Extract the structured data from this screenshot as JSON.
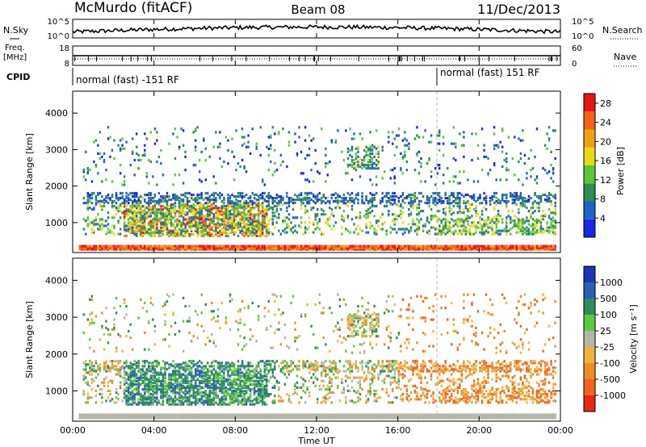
{
  "header": {
    "title": "McMurdo (fitACF)",
    "beam": "Beam 08",
    "date": "11/Dec/2013"
  },
  "strips": {
    "nsky_label": "N.Sky",
    "nsky_ticks": [
      "10^5",
      "10^0"
    ],
    "nsearch_label": "N.Search",
    "nsearch_ticks": [
      "10^5",
      "10^0"
    ],
    "freq_label_1": "Freq.",
    "freq_label_2": "[MHz]",
    "freq_ticks": [
      "18",
      "8"
    ],
    "nave_label": "Nave",
    "nave_ticks": [
      "60",
      "0"
    ],
    "cpid_label": "CPID",
    "cpid_segments": [
      "normal (fast) -151 RF",
      "normal (fast) 151 RF"
    ]
  },
  "chart_data": [
    {
      "type": "heatmap",
      "panel": "power",
      "ylabel": "Slant Range [km]",
      "yticks": [
        1000,
        2000,
        3000,
        4000
      ],
      "ylim": [
        180,
        4600
      ],
      "xlim": [
        0,
        24
      ],
      "colorbar_label": "Power [dB]",
      "colorbar_ticks": [
        4,
        8,
        12,
        16,
        20,
        24,
        28
      ],
      "colorbar_range": [
        0,
        30
      ],
      "colors": [
        "#1428e6",
        "#1e64c8",
        "#2e8c50",
        "#58c83a",
        "#e6dc14",
        "#f0a014",
        "#f06414",
        "#e61414"
      ]
    },
    {
      "type": "heatmap",
      "panel": "velocity",
      "ylabel": "Slant Range [km]",
      "yticks": [
        1000,
        2000,
        3000,
        4000
      ],
      "ylim": [
        180,
        4600
      ],
      "xlim": [
        0,
        24
      ],
      "xticks": [
        "00:00",
        "04:00",
        "08:00",
        "12:00",
        "16:00",
        "20:00",
        "00:00"
      ],
      "xlabel": "Time UT",
      "colorbar_label": "Velocity [m s⁻¹]",
      "colorbar_ticks": [
        "1000",
        "500",
        "100",
        "25",
        "-25",
        "-100",
        "-500",
        "-1000"
      ],
      "colors": [
        "#1e32b4",
        "#2860b4",
        "#2e8c5a",
        "#60c840",
        "#b4b4a8",
        "#f0b43c",
        "#f08c28",
        "#f0641e",
        "#e62814"
      ]
    }
  ]
}
